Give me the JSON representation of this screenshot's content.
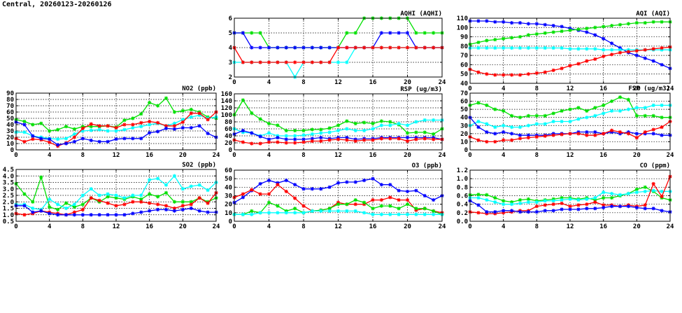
{
  "page": {
    "title": "Central, 20260123-20260126"
  },
  "colors": {
    "blue": "#0000ff",
    "green": "#00e000",
    "cyan": "#00ffff",
    "red": "#ff0000"
  },
  "chart_data": [
    {
      "id": "aqhi",
      "type": "line",
      "title": "AQHI (AQHI)",
      "xlim": [
        0,
        24
      ],
      "xticks": [
        0,
        4,
        8,
        12,
        16,
        20,
        24
      ],
      "ylim": [
        2,
        6
      ],
      "yticks": [
        2,
        3,
        4,
        5,
        6
      ],
      "grid": true,
      "series": [
        {
          "color": "#00e000",
          "values": [
            5,
            5,
            5,
            5,
            4,
            4,
            4,
            4,
            4,
            4,
            4,
            4,
            4,
            5,
            5,
            6,
            6,
            6,
            6,
            6,
            6,
            5,
            5,
            5,
            5
          ]
        },
        {
          "color": "#0000ff",
          "values": [
            5,
            5,
            4,
            4,
            4,
            4,
            4,
            4,
            4,
            4,
            4,
            4,
            4,
            4,
            4,
            4,
            4,
            5,
            5,
            5,
            5,
            4,
            4,
            4,
            4
          ]
        },
        {
          "color": "#00ffff",
          "values": [
            3,
            3,
            3,
            3,
            3,
            3,
            3,
            2,
            3,
            3,
            3,
            3,
            3,
            3,
            4,
            4,
            4,
            4,
            4,
            4,
            4,
            4,
            4,
            4,
            4
          ]
        },
        {
          "color": "#ff0000",
          "values": [
            4,
            3,
            3,
            3,
            3,
            3,
            3,
            3,
            3,
            3,
            3,
            3,
            4,
            4,
            4,
            4,
            4,
            4,
            4,
            4,
            4,
            4,
            4,
            4,
            4
          ]
        }
      ]
    },
    {
      "id": "aqi",
      "type": "line",
      "title": "AQI (AQI)",
      "xlim": [
        0,
        24
      ],
      "xticks": [
        0,
        4,
        8,
        12,
        16,
        20,
        24
      ],
      "ylim": [
        40,
        110
      ],
      "yticks": [
        40,
        50,
        60,
        70,
        80,
        90,
        100,
        110
      ],
      "grid": true,
      "series": [
        {
          "color": "#0000ff",
          "values": [
            107,
            107,
            107,
            106,
            106,
            105,
            105,
            104,
            104,
            103,
            102,
            101,
            99,
            97,
            95,
            92,
            88,
            83,
            78,
            73,
            70,
            67,
            64,
            60,
            56
          ]
        },
        {
          "color": "#00e000",
          "values": [
            82,
            84,
            86,
            87,
            88,
            89,
            90,
            92,
            93,
            94,
            95,
            96,
            97,
            98,
            99,
            100,
            101,
            102,
            103,
            104,
            105,
            105,
            106,
            106,
            106
          ]
        },
        {
          "color": "#00ffff",
          "values": [
            78,
            78,
            78,
            78,
            78,
            78,
            78,
            78,
            78,
            78,
            78,
            78,
            77,
            77,
            77,
            77,
            76,
            76,
            76,
            76,
            76,
            76,
            76,
            76,
            76
          ]
        },
        {
          "color": "#ff0000",
          "values": [
            55,
            52,
            50,
            49,
            49,
            49,
            49,
            50,
            51,
            52,
            54,
            56,
            59,
            61,
            64,
            66,
            69,
            71,
            73,
            74,
            75,
            76,
            77,
            78,
            79
          ]
        }
      ]
    },
    {
      "id": "no2",
      "type": "line",
      "title": "NO2 (ppb)",
      "xlim": [
        0,
        24
      ],
      "xticks": [
        0,
        4,
        8,
        12,
        16,
        20,
        24
      ],
      "ylim": [
        0,
        90
      ],
      "yticks": [
        0,
        10,
        20,
        30,
        40,
        50,
        60,
        70,
        80,
        90
      ],
      "grid": true,
      "series": [
        {
          "color": "#00e000",
          "values": [
            48,
            45,
            40,
            42,
            30,
            32,
            37,
            33,
            37,
            37,
            37,
            38,
            36,
            47,
            50,
            57,
            75,
            70,
            82,
            60,
            62,
            64,
            60,
            52,
            50
          ]
        },
        {
          "color": "#00ffff",
          "values": [
            28,
            28,
            22,
            20,
            18,
            17,
            18,
            25,
            30,
            31,
            32,
            30,
            30,
            32,
            35,
            37,
            40,
            42,
            38,
            42,
            48,
            52,
            55,
            50,
            52
          ]
        },
        {
          "color": "#ff0000",
          "values": [
            18,
            13,
            17,
            16,
            12,
            6,
            11,
            20,
            34,
            41,
            38,
            38,
            35,
            40,
            40,
            43,
            45,
            43,
            38,
            38,
            44,
            58,
            58,
            48,
            60
          ]
        },
        {
          "color": "#0000ff",
          "values": [
            44,
            40,
            22,
            18,
            17,
            8,
            10,
            13,
            18,
            15,
            13,
            13,
            17,
            18,
            18,
            18,
            27,
            29,
            34,
            33,
            35,
            35,
            38,
            26,
            20
          ]
        }
      ]
    },
    {
      "id": "rsp",
      "type": "line",
      "title": "RSP (ug/m3)",
      "xlim": [
        0,
        24
      ],
      "xticks": [
        0,
        4,
        8,
        12,
        16,
        20,
        24
      ],
      "ylim": [
        0,
        160
      ],
      "yticks": [
        0,
        20,
        40,
        60,
        80,
        100,
        120,
        140,
        160
      ],
      "grid": true,
      "series": [
        {
          "color": "#00e000",
          "values": [
            100,
            142,
            105,
            88,
            75,
            70,
            55,
            55,
            55,
            58,
            58,
            62,
            70,
            82,
            75,
            78,
            75,
            82,
            80,
            72,
            48,
            50,
            50,
            45,
            60
          ]
        },
        {
          "color": "#00ffff",
          "values": [
            60,
            50,
            48,
            40,
            48,
            40,
            40,
            40,
            42,
            45,
            48,
            50,
            55,
            60,
            55,
            55,
            60,
            70,
            70,
            75,
            70,
            80,
            85,
            85,
            85
          ]
        },
        {
          "color": "#0000ff",
          "values": [
            45,
            55,
            48,
            38,
            30,
            35,
            30,
            30,
            30,
            32,
            35,
            32,
            35,
            35,
            30,
            32,
            32,
            35,
            35,
            35,
            35,
            35,
            35,
            35,
            30
          ]
        },
        {
          "color": "#ff0000",
          "values": [
            28,
            22,
            18,
            18,
            22,
            22,
            20,
            20,
            22,
            25,
            25,
            28,
            30,
            28,
            25,
            28,
            28,
            32,
            32,
            32,
            25,
            30,
            32,
            30,
            30
          ]
        }
      ]
    },
    {
      "id": "fsp",
      "type": "line",
      "title": "FSP (ug/m3)",
      "xlim": [
        0,
        24
      ],
      "xticks": [
        0,
        4,
        8,
        12,
        16,
        20,
        24
      ],
      "ylim": [
        0,
        70
      ],
      "yticks": [
        0,
        10,
        20,
        30,
        40,
        50,
        60,
        70
      ],
      "grid": true,
      "series": [
        {
          "color": "#00e000",
          "values": [
            55,
            58,
            55,
            50,
            48,
            42,
            40,
            42,
            42,
            42,
            45,
            48,
            50,
            52,
            48,
            52,
            55,
            60,
            65,
            62,
            42,
            42,
            42,
            40,
            40
          ]
        },
        {
          "color": "#00ffff",
          "values": [
            30,
            35,
            32,
            28,
            30,
            28,
            28,
            30,
            32,
            32,
            35,
            35,
            35,
            38,
            40,
            42,
            45,
            48,
            48,
            50,
            52,
            52,
            55,
            55,
            55
          ]
        },
        {
          "color": "#0000ff",
          "values": [
            40,
            28,
            22,
            20,
            22,
            20,
            18,
            18,
            18,
            18,
            20,
            20,
            20,
            22,
            22,
            22,
            20,
            22,
            20,
            22,
            20,
            20,
            20,
            18,
            18
          ]
        },
        {
          "color": "#ff0000",
          "values": [
            16,
            12,
            10,
            10,
            12,
            12,
            14,
            15,
            16,
            17,
            18,
            19,
            20,
            20,
            18,
            18,
            20,
            24,
            22,
            20,
            15,
            22,
            25,
            28,
            35
          ]
        }
      ]
    },
    {
      "id": "so2",
      "type": "line",
      "title": "SO2 (ppb)",
      "xlim": [
        0,
        24
      ],
      "xticks": [
        0,
        4,
        8,
        12,
        16,
        20,
        24
      ],
      "ylim": [
        0.5,
        4.5
      ],
      "yticks": [
        0.5,
        1.0,
        1.5,
        2.0,
        2.5,
        3.0,
        3.5,
        4.0,
        4.5
      ],
      "grid": true,
      "series": [
        {
          "color": "#00e000",
          "values": [
            3.4,
            2.6,
            2.0,
            3.9,
            1.6,
            1.4,
            1.9,
            1.6,
            1.8,
            2.3,
            2.0,
            2.4,
            2.3,
            2.2,
            2.4,
            2.2,
            2.6,
            2.4,
            2.7,
            2.0,
            2.0,
            2.0,
            2.3,
            2.0,
            2.3
          ]
        },
        {
          "color": "#00ffff",
          "values": [
            1.8,
            1.8,
            1.5,
            1.4,
            2.2,
            1.8,
            1.5,
            1.8,
            2.5,
            3.0,
            2.5,
            2.6,
            2.5,
            2.3,
            2.5,
            2.5,
            3.7,
            3.8,
            3.3,
            4.0,
            3.0,
            3.2,
            3.3,
            2.9,
            3.5
          ]
        },
        {
          "color": "#ff0000",
          "values": [
            1.1,
            1.0,
            1.1,
            1.3,
            1.2,
            1.1,
            1.0,
            1.2,
            1.4,
            2.3,
            2.1,
            1.9,
            1.7,
            1.8,
            2.0,
            2.0,
            1.9,
            1.8,
            1.7,
            1.5,
            1.7,
            1.8,
            2.3,
            1.9,
            2.7
          ]
        },
        {
          "color": "#0000ff",
          "values": [
            1.7,
            1.7,
            1.2,
            1.3,
            1.1,
            1.0,
            1.0,
            1.0,
            1.0,
            1.0,
            1.0,
            1.0,
            1.0,
            1.0,
            1.1,
            1.2,
            1.3,
            1.4,
            1.4,
            1.3,
            1.4,
            1.5,
            1.3,
            1.2,
            1.2
          ]
        }
      ]
    },
    {
      "id": "o3",
      "type": "line",
      "title": "O3 (ppb)",
      "xlim": [
        0,
        24
      ],
      "xticks": [
        0,
        4,
        8,
        12,
        16,
        20,
        24
      ],
      "ylim": [
        0,
        60
      ],
      "yticks": [
        0,
        10,
        20,
        30,
        40,
        50,
        60
      ],
      "grid": true,
      "series": [
        {
          "color": "#0000ff",
          "values": [
            22,
            28,
            36,
            44,
            48,
            45,
            48,
            43,
            38,
            38,
            38,
            40,
            45,
            46,
            46,
            48,
            50,
            43,
            43,
            36,
            35,
            36,
            30,
            25,
            30
          ]
        },
        {
          "color": "#ff0000",
          "values": [
            28,
            32,
            37,
            32,
            32,
            43,
            35,
            27,
            18,
            12,
            13,
            15,
            22,
            20,
            20,
            20,
            25,
            25,
            28,
            25,
            25,
            13,
            15,
            12,
            10
          ]
        },
        {
          "color": "#00e000",
          "values": [
            8,
            8,
            12,
            10,
            22,
            18,
            12,
            15,
            10,
            12,
            13,
            15,
            20,
            20,
            25,
            22,
            15,
            18,
            18,
            15,
            20,
            15,
            15,
            12,
            8
          ]
        },
        {
          "color": "#00ffff",
          "values": [
            8,
            8,
            8,
            10,
            10,
            10,
            10,
            10,
            10,
            12,
            12,
            12,
            12,
            12,
            12,
            10,
            8,
            8,
            8,
            8,
            8,
            8,
            8,
            8,
            8
          ]
        }
      ]
    },
    {
      "id": "co",
      "type": "line",
      "title": "CO (ppm)",
      "xlim": [
        0,
        24
      ],
      "xticks": [
        0,
        4,
        8,
        12,
        16,
        20,
        24
      ],
      "ylim": [
        0.0,
        1.2
      ],
      "yticks": [
        0.0,
        0.2,
        0.4,
        0.6,
        0.8,
        1.0,
        1.2
      ],
      "grid": true,
      "series": [
        {
          "color": "#00e000",
          "values": [
            0.62,
            0.63,
            0.62,
            0.55,
            0.48,
            0.45,
            0.5,
            0.52,
            0.48,
            0.5,
            0.52,
            0.55,
            0.55,
            0.52,
            0.55,
            0.5,
            0.55,
            0.55,
            0.6,
            0.65,
            0.75,
            0.8,
            0.7,
            0.55,
            0.5
          ]
        },
        {
          "color": "#00ffff",
          "values": [
            0.55,
            0.55,
            0.5,
            0.45,
            0.4,
            0.4,
            0.42,
            0.45,
            0.45,
            0.48,
            0.48,
            0.5,
            0.52,
            0.5,
            0.52,
            0.55,
            0.68,
            0.65,
            0.62,
            0.65,
            0.68,
            0.7,
            0.72,
            0.7,
            0.7
          ]
        },
        {
          "color": "#ff0000",
          "values": [
            0.22,
            0.2,
            0.18,
            0.18,
            0.2,
            0.22,
            0.25,
            0.25,
            0.35,
            0.38,
            0.4,
            0.42,
            0.35,
            0.38,
            0.4,
            0.45,
            0.38,
            0.38,
            0.35,
            0.38,
            0.35,
            0.38,
            0.88,
            0.58,
            1.05
          ]
        },
        {
          "color": "#0000ff",
          "values": [
            0.48,
            0.38,
            0.22,
            0.22,
            0.25,
            0.25,
            0.22,
            0.22,
            0.22,
            0.25,
            0.25,
            0.28,
            0.28,
            0.28,
            0.3,
            0.3,
            0.32,
            0.35,
            0.35,
            0.35,
            0.32,
            0.3,
            0.3,
            0.25,
            0.22
          ]
        }
      ]
    }
  ]
}
